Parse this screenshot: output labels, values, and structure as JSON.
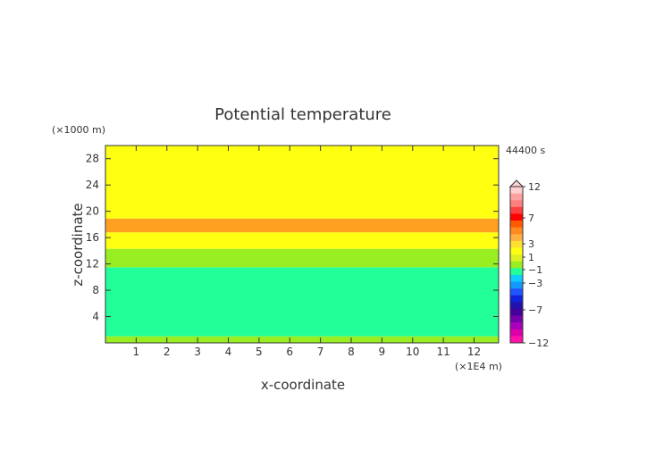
{
  "chart_data": {
    "type": "heatmap",
    "title": "Potential temperature",
    "xlabel": "x-coordinate",
    "ylabel": "z-coordinate",
    "x_unit": "(×1E4 m)",
    "y_unit": "(×1000 m)",
    "time_label": "44400 s",
    "xlim": [
      0,
      12.8
    ],
    "ylim": [
      0,
      30
    ],
    "x_ticks": [
      1,
      2,
      3,
      4,
      5,
      6,
      7,
      8,
      9,
      10,
      11,
      12
    ],
    "y_ticks": [
      4,
      8,
      12,
      16,
      20,
      24,
      28
    ],
    "bands": [
      {
        "z_min": 0.0,
        "z_max": 1.0,
        "color": "#99ee22"
      },
      {
        "z_min": 1.0,
        "z_max": 11.5,
        "color": "#22ff99"
      },
      {
        "z_min": 11.5,
        "z_max": 14.3,
        "color": "#99ee22"
      },
      {
        "z_min": 14.3,
        "z_max": 16.8,
        "color": "#ffff11"
      },
      {
        "z_min": 16.8,
        "z_max": 18.9,
        "color": "#ffa020"
      },
      {
        "z_min": 18.9,
        "z_max": 30.0,
        "color": "#ffff11"
      }
    ],
    "colorbar": {
      "labels": [
        "12",
        "7",
        "3",
        "1",
        "−1",
        "−3",
        "−7",
        "−12"
      ],
      "colors": [
        "#ffd0d0",
        "#ffa0a0",
        "#ff8080",
        "#ff4040",
        "#ff0000",
        "#ff5a00",
        "#ff8a20",
        "#ffb040",
        "#ffe030",
        "#ffff11",
        "#dff020",
        "#99ee22",
        "#22ff99",
        "#11ccff",
        "#1199ff",
        "#2255ff",
        "#1122dd",
        "#2211aa",
        "#440099",
        "#7700aa",
        "#aa00bb",
        "#dd00aa",
        "#ff11aa"
      ]
    }
  }
}
